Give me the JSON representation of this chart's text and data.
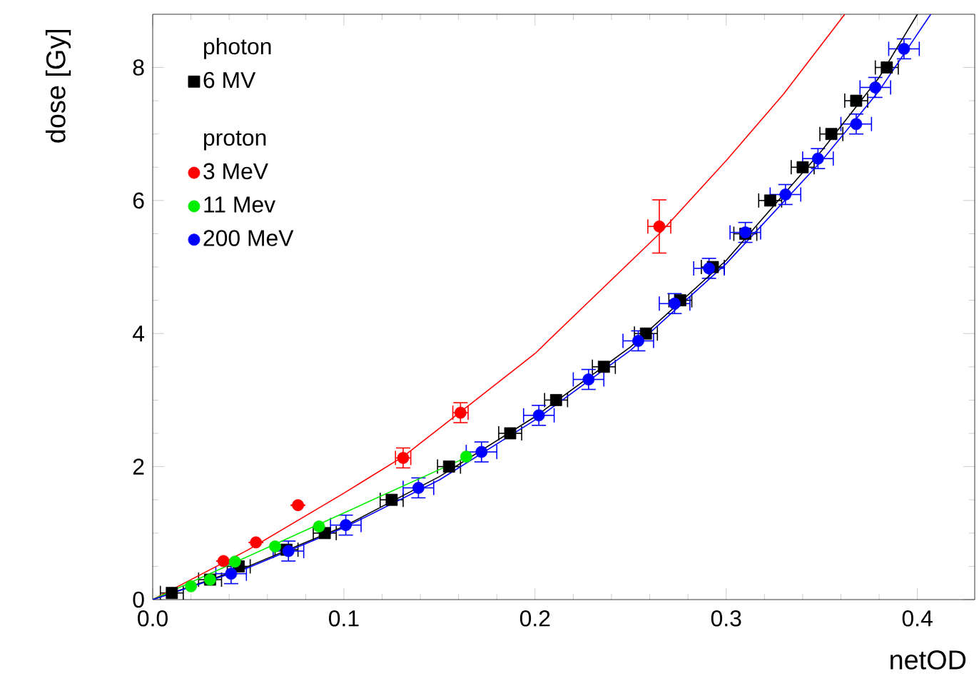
{
  "chart_data": {
    "type": "scatter",
    "xlabel": "netOD",
    "ylabel": "dose [Gy]",
    "legend_title": "photon",
    "annotations": [
      "proton"
    ],
    "legend": "top left",
    "xlim": [
      0,
      0.43
    ],
    "ylim": [
      0,
      8.8
    ],
    "xticks": [
      {
        "value": 0,
        "label": "0.0"
      },
      0.1,
      0.2,
      0.3,
      0.4
    ],
    "yticks": [
      0,
      2,
      4,
      6,
      8
    ],
    "series": [
      {
        "name": "6 MV",
        "type": "scatter",
        "marker": "square",
        "color": "#000000",
        "x": [
          0.01,
          0.03,
          0.045,
          0.07,
          0.09,
          0.125,
          0.155,
          0.187,
          0.211,
          0.236,
          0.258,
          0.276,
          0.293,
          0.31,
          0.323,
          0.34,
          0.355,
          0.368,
          0.384
        ],
        "values": [
          0.1,
          0.3,
          0.5,
          0.75,
          1.0,
          1.5,
          2.0,
          2.5,
          3.0,
          3.5,
          4.0,
          4.5,
          5.0,
          5.5,
          6.0,
          6.5,
          7.0,
          7.5,
          8.0
        ],
        "xerrors": [
          0.006,
          0.006,
          0.006,
          0.006,
          0.006,
          0.006,
          0.006,
          0.006,
          0.006,
          0.006,
          0.006,
          0.006,
          0.006,
          0.006,
          0.006,
          0.006,
          0.006,
          0.006,
          0.006
        ]
      },
      {
        "name": "3 MeV",
        "type": "scatter",
        "marker": "circle",
        "color": "#ff0000",
        "x": [
          0.037,
          0.054,
          0.076,
          0.131,
          0.161,
          0.265
        ],
        "values": [
          0.58,
          0.86,
          1.42,
          2.13,
          2.81,
          5.61
        ],
        "xerrors": [
          null,
          null,
          null,
          0.004,
          0.004,
          0.006
        ],
        "errors": [
          null,
          null,
          null,
          0.15,
          0.15,
          0.4
        ]
      },
      {
        "name": "11 Mev",
        "type": "scatter",
        "marker": "circle",
        "color": "#00ee00",
        "x": [
          0.02,
          0.03,
          0.043,
          0.064,
          0.087,
          0.164
        ],
        "values": [
          0.2,
          0.3,
          0.57,
          0.8,
          1.1,
          2.15
        ]
      },
      {
        "name": "200 MeV",
        "type": "scatter",
        "marker": "circle",
        "color": "#0000ff",
        "x": [
          0.041,
          0.071,
          0.101,
          0.139,
          0.172,
          0.202,
          0.228,
          0.254,
          0.273,
          0.291,
          0.31,
          0.331,
          0.348,
          0.368,
          0.378,
          0.393
        ],
        "values": [
          0.39,
          0.73,
          1.12,
          1.68,
          2.22,
          2.77,
          3.31,
          3.89,
          4.45,
          4.98,
          5.52,
          6.09,
          6.63,
          7.15,
          7.7,
          8.28
        ],
        "xerrors": [
          0.008,
          0.008,
          0.008,
          0.008,
          0.008,
          0.008,
          0.008,
          0.008,
          0.008,
          0.008,
          0.008,
          0.008,
          0.008,
          0.008,
          0.008,
          0.008
        ],
        "errors": [
          0.15,
          0.15,
          0.15,
          0.15,
          0.15,
          0.15,
          0.15,
          0.15,
          0.15,
          0.15,
          0.15,
          0.15,
          0.15,
          0.15,
          0.15,
          0.15
        ]
      },
      {
        "type": "line",
        "color": "#ff0000",
        "x": [
          0,
          0.05,
          0.1,
          0.131,
          0.16,
          0.2,
          0.265,
          0.3,
          0.33,
          0.362
        ],
        "values": [
          0,
          0.75,
          1.6,
          2.15,
          2.8,
          3.7,
          5.5,
          6.6,
          7.6,
          8.8
        ]
      },
      {
        "type": "line",
        "color": "#00ee00",
        "x": [
          0,
          0.165
        ],
        "values": [
          0,
          2.15
        ]
      },
      {
        "type": "line",
        "color": "#000000",
        "x": [
          0,
          0.05,
          0.1,
          0.15,
          0.2,
          0.25,
          0.3,
          0.35,
          0.38,
          0.4
        ],
        "values": [
          0,
          0.5,
          1.1,
          1.85,
          2.75,
          3.8,
          5.1,
          6.75,
          7.85,
          8.8
        ]
      },
      {
        "type": "line",
        "color": "#0000ff",
        "x": [
          0,
          0.05,
          0.1,
          0.15,
          0.2,
          0.25,
          0.3,
          0.35,
          0.38,
          0.407
        ],
        "values": [
          0,
          0.48,
          1.08,
          1.8,
          2.7,
          3.75,
          5.05,
          6.6,
          7.65,
          8.8
        ]
      }
    ]
  }
}
